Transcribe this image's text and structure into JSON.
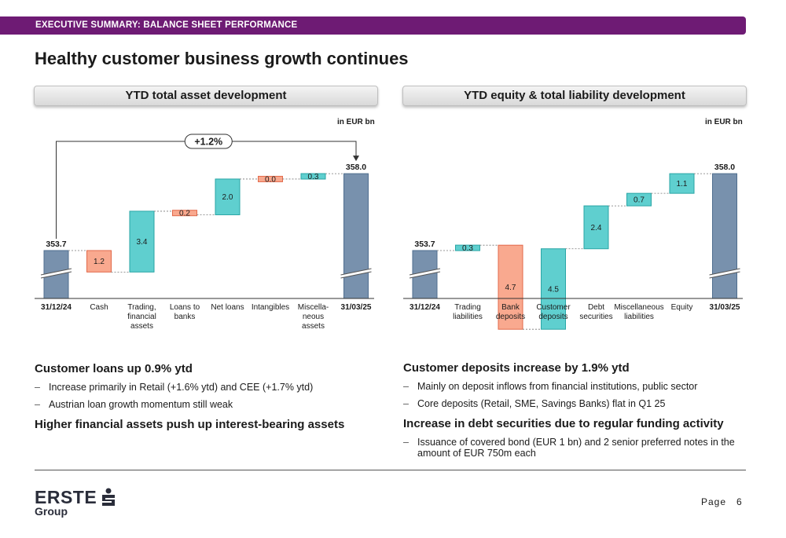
{
  "header": {
    "section": "EXECUTIVE SUMMARY: BALANCE SHEET PERFORMANCE"
  },
  "title": "Healthy customer business growth continues",
  "left_chart": {
    "heading": "YTD total asset development",
    "unit": "in EUR bn",
    "growth_label": "+1.2%"
  },
  "right_chart": {
    "heading": "YTD equity & total liability development",
    "unit": "in EUR bn"
  },
  "chart_data": [
    {
      "type": "bar",
      "title": "YTD total asset development",
      "unit": "in EUR bn",
      "categories": [
        "31/12/24",
        "Cash",
        "Trading, financial assets",
        "Loans to banks",
        "Net loans",
        "Intangibles",
        "Miscella-neous assets",
        "31/03/25"
      ],
      "values": [
        353.7,
        -1.2,
        3.4,
        -0.2,
        2.0,
        -0.0,
        0.3,
        358.0
      ],
      "value_labels": [
        "353.7",
        "1.2",
        "3.4",
        "0.2",
        "2.0",
        "0.0",
        "0.3",
        "358.0"
      ],
      "kinds": [
        "total",
        "decrease",
        "increase",
        "decrease",
        "increase",
        "decrease",
        "increase",
        "total"
      ],
      "annotation": "+1.2%",
      "colors": {
        "total": "#7891ad",
        "increase": "#5fcfcf",
        "decrease": "#f9a98f"
      }
    },
    {
      "type": "bar",
      "title": "YTD equity & total liability development",
      "unit": "in EUR bn",
      "categories": [
        "31/12/24",
        "Trading liabilities",
        "Bank deposits",
        "Customer deposits",
        "Debt securities",
        "Miscellaneous liabilities",
        "Equity",
        "31/03/25"
      ],
      "values": [
        353.7,
        0.3,
        -4.7,
        4.5,
        2.4,
        0.7,
        1.1,
        358.0
      ],
      "value_labels": [
        "353.7",
        "0.3",
        "4.7",
        "4.5",
        "2.4",
        "0.7",
        "1.1",
        "358.0"
      ],
      "kinds": [
        "total",
        "increase",
        "decrease",
        "increase",
        "increase",
        "increase",
        "increase",
        "total"
      ],
      "colors": {
        "total": "#7891ad",
        "increase": "#5fcfcf",
        "decrease": "#f9a98f"
      }
    }
  ],
  "sections": {
    "left": [
      {
        "heading": "Customer loans up 0.9% ytd",
        "items": [
          "Increase primarily in Retail (+1.6% ytd) and CEE (+1.7% ytd)",
          "Austrian loan growth momentum still weak"
        ]
      },
      {
        "heading": "Higher financial assets push up interest-bearing assets",
        "items": []
      }
    ],
    "right": [
      {
        "heading": "Customer deposits increase by 1.9% ytd",
        "items": [
          "Mainly on deposit inflows from financial institutions, public sector",
          "Core deposits (Retail, SME, Savings Banks) flat in Q1 25"
        ]
      },
      {
        "heading": "Increase in debt securities due to regular funding activity",
        "items": [
          "Issuance of covered bond (EUR 1 bn) and  2 senior preferred notes in the amount of EUR 750m each"
        ]
      }
    ]
  },
  "footer": {
    "brand": "ERSTE",
    "group": "Group",
    "page_label": "Page",
    "page_number": "6"
  }
}
